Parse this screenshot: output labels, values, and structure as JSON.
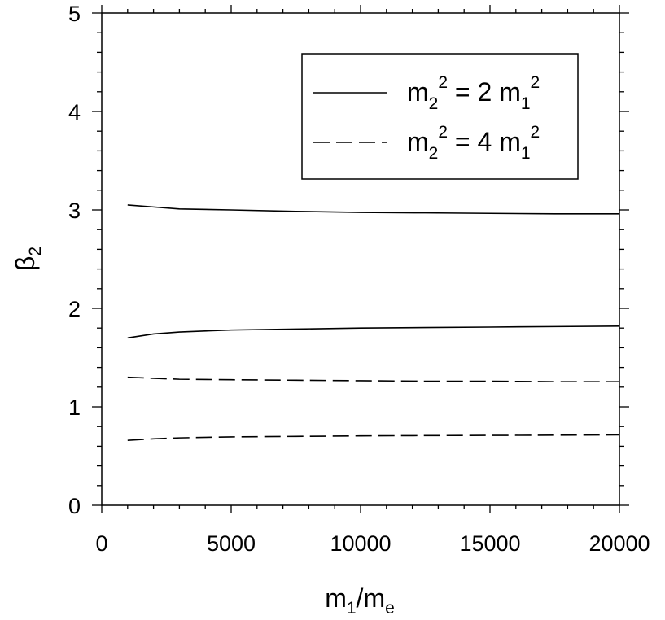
{
  "chart_data": {
    "type": "line",
    "xlabel": {
      "base": "m",
      "base_sub": "1",
      "sep": "/",
      "base2": "m",
      "base2_sub": "e"
    },
    "ylabel": {
      "base": "β",
      "sub": "2"
    },
    "xlim": [
      0,
      20000
    ],
    "ylim": [
      0,
      5
    ],
    "x_ticks": [
      0,
      5000,
      10000,
      15000,
      20000
    ],
    "x_tick_labels": [
      "0",
      "5000",
      "10000",
      "15000",
      "20000"
    ],
    "y_ticks": [
      0,
      1,
      2,
      3,
      4,
      5
    ],
    "y_tick_labels": [
      "0",
      "1",
      "2",
      "3",
      "4",
      "5"
    ],
    "grid": false,
    "legend_position": "top-right",
    "legend": [
      {
        "style": "solid",
        "lhs": "m",
        "lhs_sub": "2",
        "lhs_sup": "2",
        "eq": " = 2 ",
        "rhs": "m",
        "rhs_sub": "1",
        "rhs_sup": "2"
      },
      {
        "style": "dashed",
        "lhs": "m",
        "lhs_sub": "2",
        "lhs_sup": "2",
        "eq": " = 4 ",
        "rhs": "m",
        "rhs_sub": "1",
        "rhs_sup": "2"
      }
    ],
    "series": [
      {
        "style": "solid",
        "x": [
          1000,
          2000,
          3000,
          5000,
          7500,
          10000,
          12500,
          15000,
          17500,
          20000
        ],
        "y": [
          3.05,
          3.03,
          3.01,
          3.0,
          2.985,
          2.975,
          2.97,
          2.965,
          2.96,
          2.96
        ]
      },
      {
        "style": "solid",
        "x": [
          1000,
          2000,
          3000,
          5000,
          7500,
          10000,
          12500,
          15000,
          17500,
          20000
        ],
        "y": [
          1.7,
          1.74,
          1.76,
          1.78,
          1.79,
          1.8,
          1.805,
          1.81,
          1.815,
          1.82
        ]
      },
      {
        "style": "dashed",
        "x": [
          1000,
          2000,
          3000,
          5000,
          7500,
          10000,
          12500,
          15000,
          17500,
          20000
        ],
        "y": [
          1.3,
          1.29,
          1.28,
          1.275,
          1.27,
          1.265,
          1.26,
          1.26,
          1.255,
          1.255
        ]
      },
      {
        "style": "dashed",
        "x": [
          1000,
          2000,
          3000,
          5000,
          7500,
          10000,
          12500,
          15000,
          17500,
          20000
        ],
        "y": [
          0.66,
          0.675,
          0.685,
          0.695,
          0.7,
          0.705,
          0.708,
          0.71,
          0.712,
          0.715
        ]
      }
    ]
  }
}
